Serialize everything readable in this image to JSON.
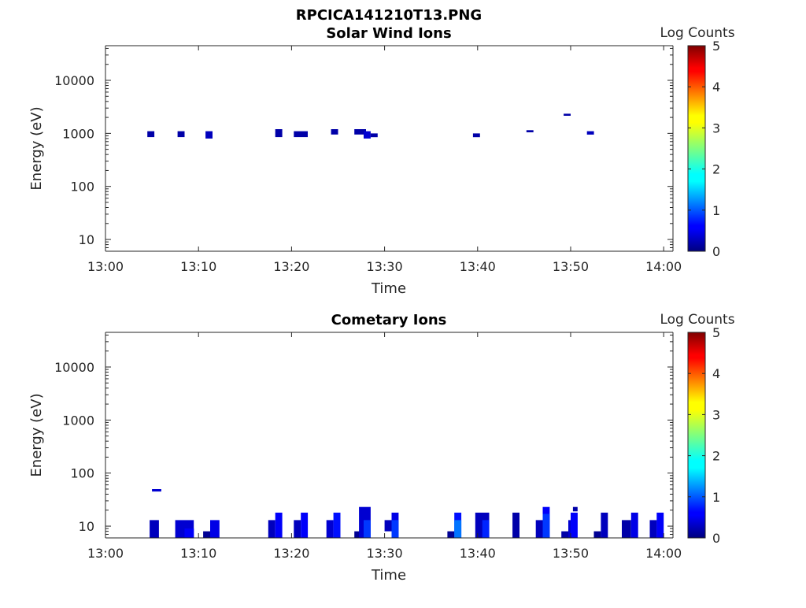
{
  "figure": {
    "title": "RPCICA141210T13.PNG"
  },
  "chart_data": [
    {
      "type": "heatmap",
      "title": "Solar Wind Ions",
      "xlabel": "Time",
      "ylabel": "Energy (eV)",
      "y_scale": "log",
      "ylim": [
        6,
        45000
      ],
      "xlim": [
        "13:00",
        "14:01"
      ],
      "x_ticks": [
        "13:00",
        "13:10",
        "13:20",
        "13:30",
        "13:40",
        "13:50",
        "14:00"
      ],
      "y_ticks": [
        "10",
        "100",
        "1000",
        "10000"
      ],
      "colorbar": {
        "label": "Log Counts",
        "range": [
          0,
          5
        ],
        "ticks": [
          "0",
          "1",
          "2",
          "3",
          "4",
          "5"
        ],
        "colormap": "jet"
      },
      "cells": [
        {
          "t0": "13:04:30",
          "t1": "13:05:15",
          "e_low": 850,
          "e_high": 1100,
          "log_counts": 0.2
        },
        {
          "t0": "13:07:45",
          "t1": "13:08:30",
          "e_low": 850,
          "e_high": 1100,
          "log_counts": 0.2
        },
        {
          "t0": "13:10:45",
          "t1": "13:11:30",
          "e_low": 800,
          "e_high": 1100,
          "log_counts": 0.3
        },
        {
          "t0": "13:18:15",
          "t1": "13:19:00",
          "e_low": 850,
          "e_high": 1200,
          "log_counts": 0.2
        },
        {
          "t0": "13:20:15",
          "t1": "13:21:45",
          "e_low": 850,
          "e_high": 1100,
          "log_counts": 0.2
        },
        {
          "t0": "13:24:15",
          "t1": "13:25:00",
          "e_low": 950,
          "e_high": 1200,
          "log_counts": 0.2
        },
        {
          "t0": "13:26:45",
          "t1": "13:28:00",
          "e_low": 950,
          "e_high": 1200,
          "log_counts": 0.2
        },
        {
          "t0": "13:27:45",
          "t1": "13:28:30",
          "e_low": 800,
          "e_high": 1100,
          "log_counts": 0.4
        },
        {
          "t0": "13:28:30",
          "t1": "13:29:15",
          "e_low": 850,
          "e_high": 1000,
          "log_counts": 0.2
        },
        {
          "t0": "13:39:30",
          "t1": "13:40:15",
          "e_low": 850,
          "e_high": 1000,
          "log_counts": 0.2
        },
        {
          "t0": "13:45:15",
          "t1": "13:46:00",
          "e_low": 1050,
          "e_high": 1150,
          "log_counts": 0.2
        },
        {
          "t0": "13:49:15",
          "t1": "13:50:00",
          "e_low": 2150,
          "e_high": 2350,
          "log_counts": 0.2
        },
        {
          "t0": "13:51:45",
          "t1": "13:52:30",
          "e_low": 950,
          "e_high": 1100,
          "log_counts": 0.3
        }
      ]
    },
    {
      "type": "heatmap",
      "title": "Cometary Ions",
      "xlabel": "Time",
      "ylabel": "Energy (eV)",
      "y_scale": "log",
      "ylim": [
        6,
        45000
      ],
      "xlim": [
        "13:00",
        "14:01"
      ],
      "x_ticks": [
        "13:00",
        "13:10",
        "13:20",
        "13:30",
        "13:40",
        "13:50",
        "14:00"
      ],
      "y_ticks": [
        "10",
        "100",
        "1000",
        "10000"
      ],
      "colorbar": {
        "label": "Log Counts",
        "range": [
          0,
          5
        ],
        "ticks": [
          "0",
          "1",
          "2",
          "3",
          "4",
          "5"
        ],
        "colormap": "jet"
      },
      "cells": [
        {
          "t0": "13:05:00",
          "t1": "13:06:00",
          "e_low": 45,
          "e_high": 50,
          "log_counts": 0.4
        },
        {
          "t0": "13:04:45",
          "t1": "13:05:45",
          "e_low": 6,
          "e_high": 13,
          "log_counts": 0.3
        },
        {
          "t0": "13:07:30",
          "t1": "13:09:30",
          "e_low": 6,
          "e_high": 13,
          "log_counts": 0.4
        },
        {
          "t0": "13:08:30",
          "t1": "13:09:30",
          "e_low": 6,
          "e_high": 9,
          "log_counts": 0.6
        },
        {
          "t0": "13:10:30",
          "t1": "13:11:15",
          "e_low": 6,
          "e_high": 8,
          "log_counts": 0.1
        },
        {
          "t0": "13:11:15",
          "t1": "13:12:15",
          "e_low": 6,
          "e_high": 13,
          "log_counts": 0.5
        },
        {
          "t0": "13:17:30",
          "t1": "13:18:15",
          "e_low": 6,
          "e_high": 13,
          "log_counts": 0.3
        },
        {
          "t0": "13:18:15",
          "t1": "13:19:00",
          "e_low": 6,
          "e_high": 18,
          "log_counts": 0.6
        },
        {
          "t0": "13:20:15",
          "t1": "13:21:00",
          "e_low": 6,
          "e_high": 13,
          "log_counts": 0.3
        },
        {
          "t0": "13:21:00",
          "t1": "13:21:45",
          "e_low": 6,
          "e_high": 18,
          "log_counts": 0.6
        },
        {
          "t0": "13:23:45",
          "t1": "13:24:30",
          "e_low": 6,
          "e_high": 13,
          "log_counts": 0.4
        },
        {
          "t0": "13:24:30",
          "t1": "13:25:15",
          "e_low": 6,
          "e_high": 18,
          "log_counts": 0.7
        },
        {
          "t0": "13:26:45",
          "t1": "13:27:30",
          "e_low": 6,
          "e_high": 8,
          "log_counts": 0.1
        },
        {
          "t0": "13:27:15",
          "t1": "13:28:30",
          "e_low": 6,
          "e_high": 23,
          "log_counts": 0.4
        },
        {
          "t0": "13:27:45",
          "t1": "13:28:30",
          "e_low": 6,
          "e_high": 13,
          "log_counts": 0.9
        },
        {
          "t0": "13:30:00",
          "t1": "13:30:45",
          "e_low": 8,
          "e_high": 13,
          "log_counts": 0.3
        },
        {
          "t0": "13:30:45",
          "t1": "13:31:30",
          "e_low": 6,
          "e_high": 18,
          "log_counts": 0.5
        },
        {
          "t0": "13:30:45",
          "t1": "13:31:30",
          "e_low": 6,
          "e_high": 13,
          "log_counts": 0.9
        },
        {
          "t0": "13:36:45",
          "t1": "13:37:30",
          "e_low": 6,
          "e_high": 8,
          "log_counts": 0.1
        },
        {
          "t0": "13:37:30",
          "t1": "13:38:15",
          "e_low": 6,
          "e_high": 18,
          "log_counts": 0.7
        },
        {
          "t0": "13:37:30",
          "t1": "13:38:15",
          "e_low": 6,
          "e_high": 13,
          "log_counts": 1.2
        },
        {
          "t0": "13:39:45",
          "t1": "13:41:15",
          "e_low": 6,
          "e_high": 18,
          "log_counts": 0.3
        },
        {
          "t0": "13:40:30",
          "t1": "13:41:15",
          "e_low": 6,
          "e_high": 13,
          "log_counts": 0.8
        },
        {
          "t0": "13:43:45",
          "t1": "13:44:30",
          "e_low": 6,
          "e_high": 18,
          "log_counts": 0.2
        },
        {
          "t0": "13:46:15",
          "t1": "13:47:00",
          "e_low": 6,
          "e_high": 13,
          "log_counts": 0.3
        },
        {
          "t0": "13:47:00",
          "t1": "13:47:45",
          "e_low": 6,
          "e_high": 23,
          "log_counts": 0.6
        },
        {
          "t0": "13:47:00",
          "t1": "13:47:45",
          "e_low": 6,
          "e_high": 17,
          "log_counts": 0.9
        },
        {
          "t0": "13:49:00",
          "t1": "13:49:45",
          "e_low": 6,
          "e_high": 8,
          "log_counts": 0.2
        },
        {
          "t0": "13:49:45",
          "t1": "13:50:15",
          "e_low": 6,
          "e_high": 13,
          "log_counts": 0.4
        },
        {
          "t0": "13:50:00",
          "t1": "13:50:45",
          "e_low": 6,
          "e_high": 18,
          "log_counts": 0.6
        },
        {
          "t0": "13:50:15",
          "t1": "13:50:45",
          "e_low": 19,
          "e_high": 23,
          "log_counts": 0.2
        },
        {
          "t0": "13:52:30",
          "t1": "13:53:15",
          "e_low": 6,
          "e_high": 8,
          "log_counts": 0.1
        },
        {
          "t0": "13:53:15",
          "t1": "13:54:00",
          "e_low": 6,
          "e_high": 18,
          "log_counts": 0.3
        },
        {
          "t0": "13:55:30",
          "t1": "13:56:30",
          "e_low": 6,
          "e_high": 13,
          "log_counts": 0.2
        },
        {
          "t0": "13:56:30",
          "t1": "13:57:15",
          "e_low": 6,
          "e_high": 18,
          "log_counts": 0.5
        },
        {
          "t0": "13:58:30",
          "t1": "13:59:15",
          "e_low": 6,
          "e_high": 13,
          "log_counts": 0.3
        },
        {
          "t0": "13:59:15",
          "t1": "14:00:00",
          "e_low": 6,
          "e_high": 18,
          "log_counts": 0.6
        }
      ]
    }
  ]
}
